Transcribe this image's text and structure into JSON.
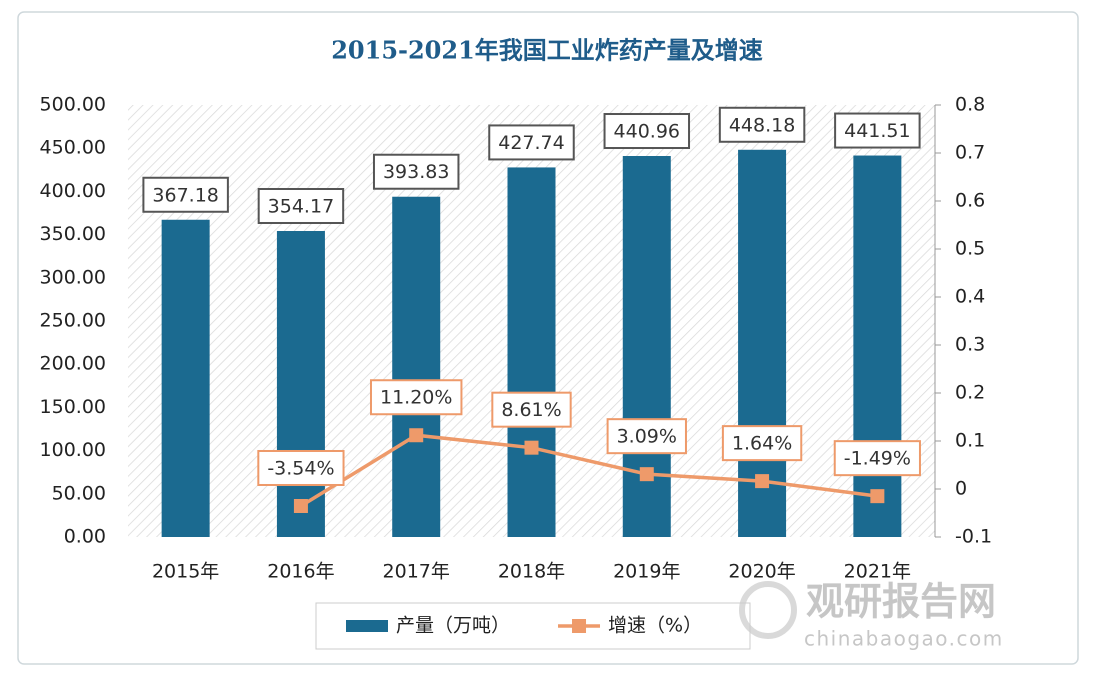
{
  "chart_data": {
    "type": "bar",
    "title": "2015-2021年我国工业炸药产量及增速",
    "categories": [
      "2015年",
      "2016年",
      "2017年",
      "2018年",
      "2019年",
      "2020年",
      "2021年"
    ],
    "series": [
      {
        "name": "产量（万吨）",
        "type": "bar",
        "color": "#1b6a90",
        "values": [
          367.18,
          354.17,
          393.83,
          427.74,
          440.96,
          448.18,
          441.51
        ]
      },
      {
        "name": "增速（%）",
        "type": "line",
        "axis": "y2",
        "color": "#ee9a6a",
        "values": [
          null,
          -0.0354,
          0.112,
          0.0861,
          0.0309,
          0.0164,
          -0.0149
        ],
        "value_labels": [
          null,
          "-3.54%",
          "11.20%",
          "8.61%",
          "3.09%",
          "1.64%",
          "-1.49%"
        ]
      }
    ],
    "ylim": [
      0,
      500
    ],
    "yticks": [
      {
        "value": 0,
        "label": "0.00"
      },
      {
        "value": 50,
        "label": "50.00"
      },
      {
        "value": 100,
        "label": "100.00"
      },
      {
        "value": 150,
        "label": "150.00"
      },
      {
        "value": 200,
        "label": "200.00"
      },
      {
        "value": 250,
        "label": "250.00"
      },
      {
        "value": 300,
        "label": "300.00"
      },
      {
        "value": 350,
        "label": "350.00"
      },
      {
        "value": 400,
        "label": "400.00"
      },
      {
        "value": 450,
        "label": "450.00"
      },
      {
        "value": 500,
        "label": "500.00"
      }
    ],
    "y2lim": [
      -0.1,
      0.8
    ],
    "y2ticks": [
      -0.1,
      0,
      0.1,
      0.2,
      0.3,
      0.4,
      0.5,
      0.6,
      0.7,
      0.8
    ],
    "legend": "bottom",
    "watermark": {
      "text": "观研报告网",
      "url": "chinabaogao.com"
    }
  }
}
